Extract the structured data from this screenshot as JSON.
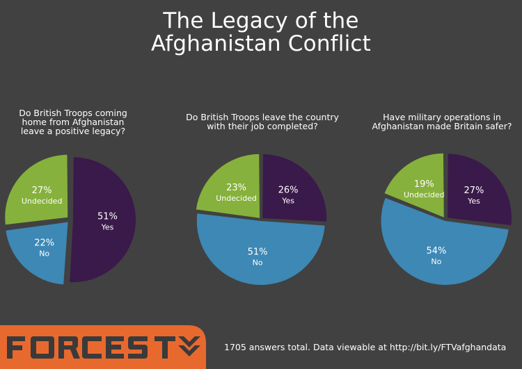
{
  "title_lines": [
    "The Legacy of the",
    "Afghanistan Conflict"
  ],
  "colors": {
    "background": "#414141",
    "yes": "#3a1a4a",
    "no": "#3d88b5",
    "undecided": "#86b13c",
    "brand_orange": "#e8692e",
    "logo_dark": "#3a3a3a"
  },
  "brand": {
    "logo_text": "FORCES TV"
  },
  "footer": {
    "note": "1705 answers total. Data viewable at http://bit.ly/FTVafghandata"
  },
  "chart_data": [
    {
      "type": "pie",
      "title_lines": [
        "Do British Troops coming",
        "home from Afghanistan",
        "leave a positive legacy?"
      ],
      "slices": [
        {
          "label": "Yes",
          "value": 51,
          "color": "#3a1a4a"
        },
        {
          "label": "No",
          "value": 22,
          "color": "#3d88b5"
        },
        {
          "label": "Undecided",
          "value": 27,
          "color": "#86b13c"
        }
      ],
      "value_suffix": "%"
    },
    {
      "type": "pie",
      "title_lines": [
        "Do British Troops leave the country",
        "with their job completed?"
      ],
      "slices": [
        {
          "label": "Yes",
          "value": 26,
          "color": "#3a1a4a"
        },
        {
          "label": "No",
          "value": 51,
          "color": "#3d88b5"
        },
        {
          "label": "Undecided",
          "value": 23,
          "color": "#86b13c"
        }
      ],
      "value_suffix": "%"
    },
    {
      "type": "pie",
      "title_lines": [
        "Have military operations in",
        "Afghanistan made Britain safer?"
      ],
      "slices": [
        {
          "label": "Yes",
          "value": 27,
          "color": "#3a1a4a"
        },
        {
          "label": "No",
          "value": 54,
          "color": "#3d88b5"
        },
        {
          "label": "Undecided",
          "value": 19,
          "color": "#86b13c"
        }
      ],
      "value_suffix": "%"
    }
  ]
}
